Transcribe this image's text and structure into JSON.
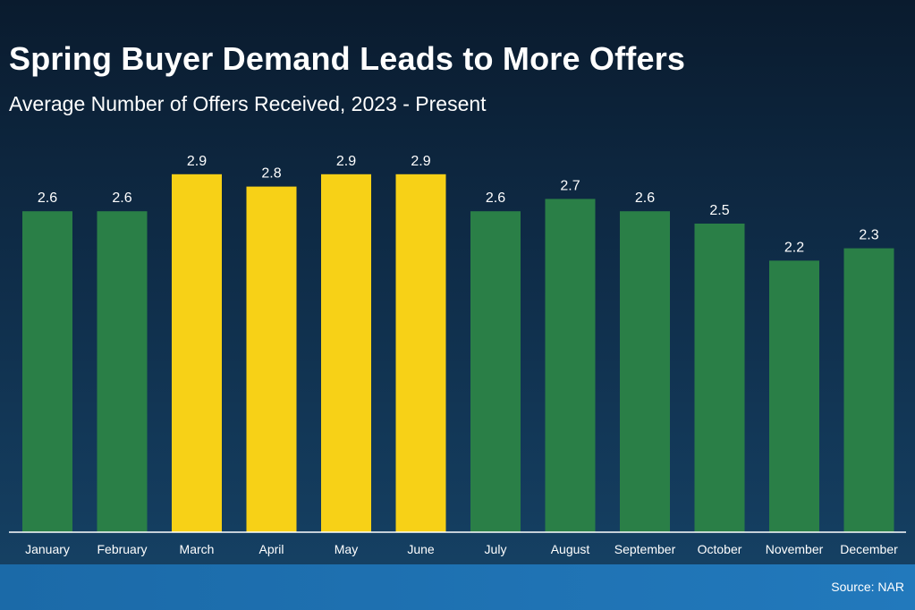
{
  "colors": {
    "spring_bar": "#f7d117",
    "other_bar": "#2a7f47",
    "axis_line": "#ffffff",
    "text": "#ffffff"
  },
  "footer": {
    "source": "Source: NAR"
  },
  "chart_data": {
    "type": "bar",
    "title": "Spring Buyer Demand Leads to More Offers",
    "subtitle": "Average Number of Offers Received, 2023 - Present",
    "xlabel": "",
    "ylabel": "",
    "ylim": [
      0,
      3.2
    ],
    "grid": false,
    "legend": "none",
    "categories": [
      "January",
      "February",
      "March",
      "April",
      "May",
      "June",
      "July",
      "August",
      "September",
      "October",
      "November",
      "December"
    ],
    "values": [
      2.6,
      2.6,
      2.9,
      2.8,
      2.9,
      2.9,
      2.6,
      2.7,
      2.6,
      2.5,
      2.2,
      2.3
    ],
    "value_labels": [
      "2.6",
      "2.6",
      "2.9",
      "2.8",
      "2.9",
      "2.9",
      "2.6",
      "2.7",
      "2.6",
      "2.5",
      "2.2",
      "2.3"
    ],
    "highlighted": [
      false,
      false,
      true,
      true,
      true,
      true,
      false,
      false,
      false,
      false,
      false,
      false
    ]
  }
}
